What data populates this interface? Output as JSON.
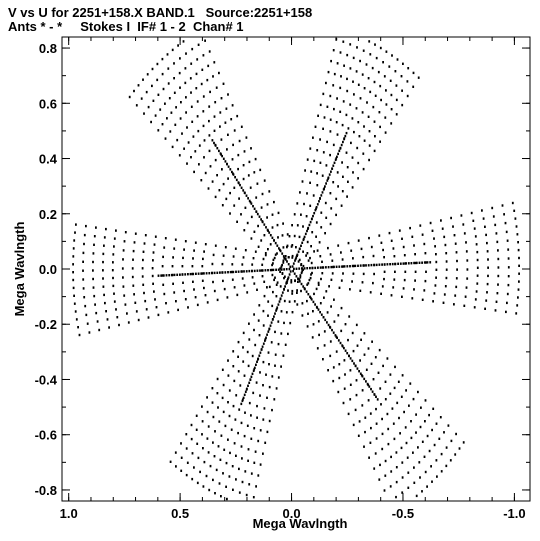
{
  "header": {
    "line1": "V vs U for 2251+158.X BAND.1   Source:2251+158",
    "line2": "Ants * - *     Stokes I  IF# 1 - 2  Chan# 1"
  },
  "chart_data": {
    "type": "scatter",
    "title": "V vs U for 2251+158.X BAND.1   Source:2251+158",
    "subtitle": "Ants * - *     Stokes I  IF# 1 - 2  Chan# 1",
    "xlabel": "Mega Wavlngth",
    "ylabel": "Mega Wavlngth",
    "xlim": [
      1.03,
      -1.07
    ],
    "ylim": [
      -0.84,
      0.84
    ],
    "x_reversed": true,
    "x_ticks": [
      "1.0",
      "0.5",
      "0.0",
      "-0.5",
      "-1.0"
    ],
    "x_tick_values": [
      1.0,
      0.5,
      0.0,
      -0.5,
      -1.0
    ],
    "y_ticks": [
      "0.8",
      "0.6",
      "0.4",
      "0.2",
      "0.0",
      "-0.2",
      "-0.4",
      "-0.6",
      "-0.8"
    ],
    "y_tick_values": [
      0.8,
      0.6,
      0.4,
      0.2,
      0.0,
      -0.2,
      -0.4,
      -0.6,
      -0.8
    ],
    "grid": false,
    "marker_color": "#000000",
    "arms_description": "six-armed star uv-coverage pattern (VLA-like Y configuration), arms at approx. 60-degree spacing, each arm composed of multiple parallel dotted tracks",
    "arm_tips": [
      {
        "u": 0.58,
        "v": 0.76
      },
      {
        "u": -0.4,
        "v": 0.8
      },
      {
        "u": -1.02,
        "v": 0.04
      },
      {
        "u": -0.63,
        "v": -0.77
      },
      {
        "u": 0.37,
        "v": -0.8
      },
      {
        "u": 0.98,
        "v": -0.04
      }
    ]
  }
}
